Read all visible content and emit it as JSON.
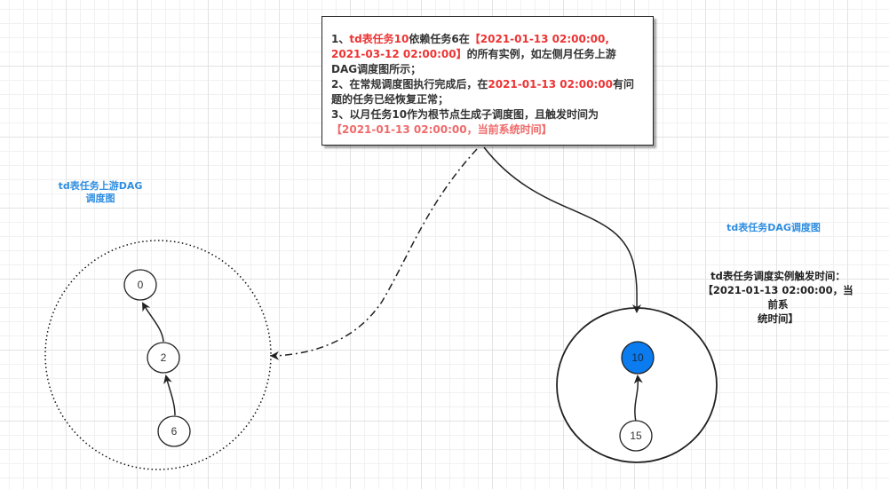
{
  "note": {
    "line1_prefix": "1、",
    "line1_red": "td表任务10",
    "line1_mid": "依赖任务6在",
    "line1_range_a": "【2021-01-13 02:00:00,",
    "line2_range_b": "2021-03-12 02:00:00】",
    "line2_rest": "的所有实例，如左侧月任务上游",
    "line3": "DAG调度图所示；",
    "line4_prefix": "2、在常规调度图执行完成后，在",
    "line4_red": "2021-01-13 02:00:00",
    "line4_rest": "有问",
    "line5": "题的任务已经恢复正常；",
    "line6": "3、以月任务10作为根节点生成子调度图，且触发时间为",
    "line7_red": "【2021-01-13 02:00:00，当前系统时间】"
  },
  "left_graph": {
    "title_line1": "td表任务上游DAG",
    "title_line2": "调度图",
    "nodes": [
      {
        "id": "0"
      },
      {
        "id": "2"
      },
      {
        "id": "6"
      }
    ]
  },
  "right_graph": {
    "title": "td表任务DAG调度图",
    "trigger_line1": "td表任务调度实例触发时间：",
    "trigger_line2": "【2021-01-13 02:00:00，当前系",
    "trigger_line3": "统时间】",
    "nodes": [
      {
        "id": "10"
      },
      {
        "id": "15"
      }
    ]
  },
  "colors": {
    "highlight_node": "#0a7cf0",
    "accent_red": "#ee3333",
    "label_blue": "#2f8ee0"
  }
}
